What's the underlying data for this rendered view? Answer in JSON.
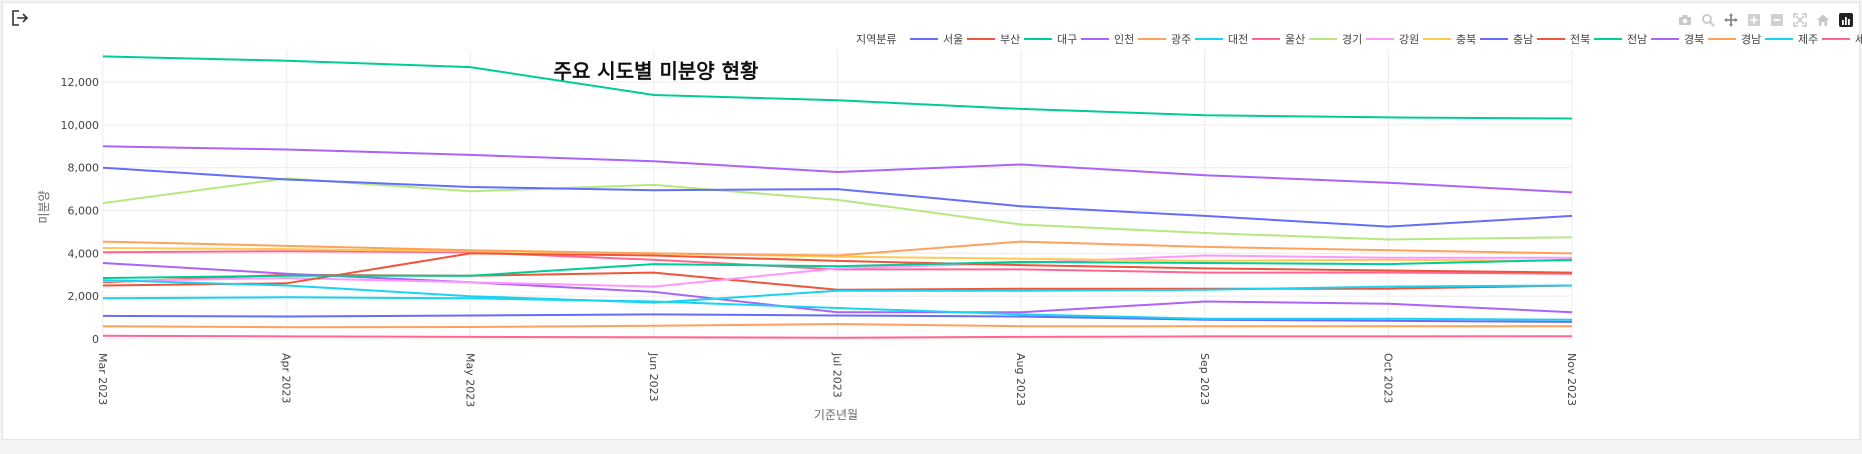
{
  "toolbar": {
    "exit_icon": "exit-icon",
    "modebar_icons": [
      "camera-icon",
      "zoom-icon",
      "pan-icon",
      "zoom-in-icon",
      "zoom-out-icon",
      "autoscale-icon",
      "home-icon",
      "chart-logo-icon"
    ]
  },
  "chart_data": {
    "type": "line",
    "title": "주요 시도별 미분양 현황",
    "xlabel": "기준년월",
    "ylabel": "미분양",
    "legend_title": "지역분류",
    "legend_position": "top",
    "grid": true,
    "ylim": [
      0,
      13500
    ],
    "yticks": [
      0,
      2000,
      4000,
      6000,
      8000,
      10000,
      12000
    ],
    "ytick_labels": [
      "0",
      "2,000",
      "4,000",
      "6,000",
      "8,000",
      "10,000",
      "12,000"
    ],
    "x": [
      "Mar 2023",
      "Apr 2023",
      "May 2023",
      "Jun 2023",
      "Jul 2023",
      "Aug 2023",
      "Sep 2023",
      "Oct 2023",
      "Nov 2023"
    ],
    "series": [
      {
        "name": "서울",
        "color": "#636efa",
        "values": [
          1080,
          1050,
          1100,
          1150,
          1100,
          1050,
          900,
          850,
          800
        ]
      },
      {
        "name": "부산",
        "color": "#EF553B",
        "values": [
          2650,
          3000,
          2950,
          3100,
          2300,
          2350,
          2350,
          2350,
          2500
        ]
      },
      {
        "name": "대구",
        "color": "#00cc96",
        "values": [
          13200,
          13000,
          12700,
          11400,
          11150,
          10750,
          10450,
          10350,
          10300
        ]
      },
      {
        "name": "인천",
        "color": "#ab63fa",
        "values": [
          3550,
          3050,
          2650,
          2200,
          1250,
          1250,
          1750,
          1650,
          1250
        ]
      },
      {
        "name": "광주",
        "color": "#FFA15A",
        "values": [
          600,
          550,
          560,
          620,
          700,
          600,
          600,
          600,
          600
        ]
      },
      {
        "name": "대전",
        "color": "#19d3f3",
        "values": [
          1900,
          1950,
          1900,
          1750,
          1450,
          1150,
          950,
          950,
          900
        ]
      },
      {
        "name": "울산",
        "color": "#FF6692",
        "values": [
          4050,
          4100,
          4050,
          3700,
          3250,
          3250,
          3100,
          3100,
          3050
        ]
      },
      {
        "name": "경기",
        "color": "#B6E880",
        "values": [
          6350,
          7500,
          6900,
          7200,
          6500,
          5350,
          4950,
          4650,
          4750
        ]
      },
      {
        "name": "강원",
        "color": "#FF97FF",
        "values": [
          2700,
          2850,
          2650,
          2450,
          3300,
          3550,
          3900,
          3800,
          3800
        ]
      },
      {
        "name": "충북",
        "color": "#FECB52",
        "values": [
          4250,
          4200,
          4100,
          4000,
          3850,
          3750,
          3650,
          3700,
          3650
        ]
      },
      {
        "name": "충남",
        "color": "#636efa",
        "values": [
          8000,
          7450,
          7100,
          6950,
          7000,
          6200,
          5750,
          5250,
          5750
        ]
      },
      {
        "name": "전북",
        "color": "#EF553B",
        "values": [
          2500,
          2600,
          4000,
          3900,
          3650,
          3450,
          3300,
          3200,
          3100
        ]
      },
      {
        "name": "전남",
        "color": "#00cc96",
        "values": [
          2850,
          2950,
          2950,
          3500,
          3400,
          3600,
          3550,
          3500,
          3700
        ]
      },
      {
        "name": "경북",
        "color": "#ab63fa",
        "values": [
          9000,
          8850,
          8600,
          8300,
          7800,
          8150,
          7650,
          7300,
          6850
        ]
      },
      {
        "name": "경남",
        "color": "#FFA15A",
        "values": [
          4550,
          4350,
          4150,
          4000,
          3900,
          4550,
          4300,
          4150,
          4000
        ]
      },
      {
        "name": "제주",
        "color": "#19d3f3",
        "values": [
          2750,
          2500,
          2000,
          1700,
          2250,
          2250,
          2300,
          2450,
          2500
        ]
      },
      {
        "name": "세종",
        "color": "#FF6692",
        "values": [
          150,
          120,
          100,
          80,
          60,
          100,
          120,
          120,
          130
        ]
      }
    ]
  }
}
